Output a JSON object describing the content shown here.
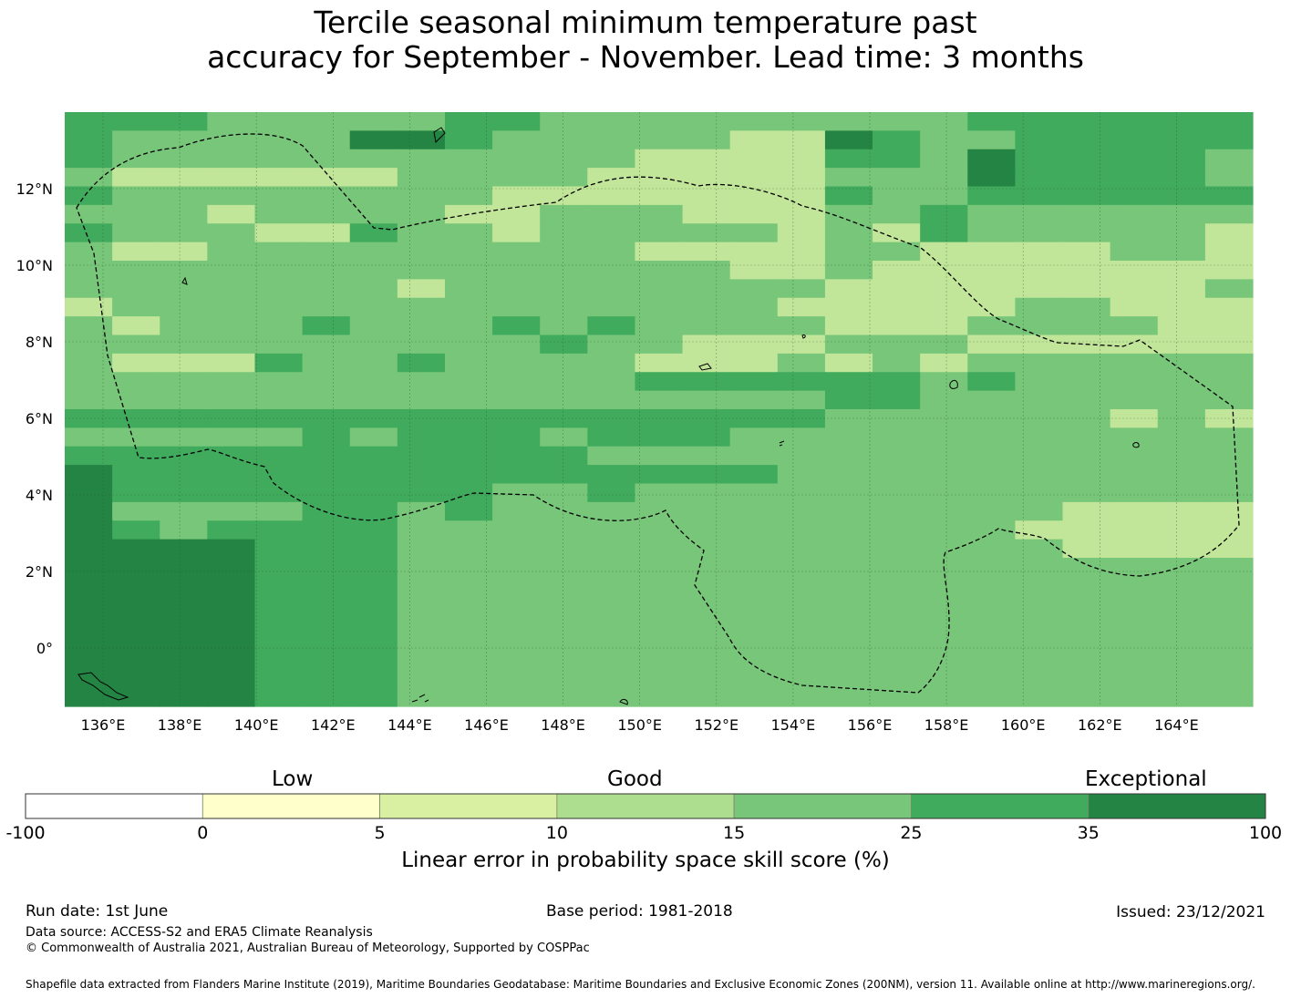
{
  "title_line1": "Tercile seasonal minimum temperature past",
  "title_line2": "accuracy for September - November. Lead time: 3 months",
  "map": {
    "lon_labels": [
      "136°E",
      "138°E",
      "140°E",
      "142°E",
      "144°E",
      "146°E",
      "148°E",
      "150°E",
      "152°E",
      "154°E",
      "156°E",
      "158°E",
      "160°E",
      "162°E",
      "164°E"
    ],
    "lat_labels": [
      "12°N",
      "10°N",
      "8°N",
      "6°N",
      "4°N",
      "2°N",
      "0°"
    ],
    "grid_rows": [
      "4443333344333333333444444",
      "4333335543333322543344444",
      "4333333333332222443544443",
      "3222222333322222333544443",
      "4333333332222222433444444",
      "3332333322333222334333333",
      "4333224332333332324333332",
      "3223333333332222332222332",
      "3333333333333322322222222",
      "3333333233333333222222223",
      "2333333333333332222233222",
      "3233343334343333222333322",
      "3333333333433222333222222",
      "3222433433332223232333333",
      "3333333333334444443433333",
      "3333333333333333443333333",
      "4444444444444444333333232",
      "3333343444344433333333333",
      "4444444444433333333333333",
      "5444444444444443333333333",
      "5444444443343333333333333",
      "5333344343333333333332222",
      "5434444333333333333322222",
      "5555444333333333333332222",
      "5555444333333333333333333",
      "5555444333333333333333333",
      "5555444333333333333333333",
      "5555444333333333333333333",
      "5555444333333333333333333",
      "5555444333333333333333333",
      "5555444333333333333333333",
      "5555444333333333333333333"
    ],
    "grid_note": "",
    "colors": {
      "1": "#ffffcc",
      "2": "#c2e699",
      "3": "#78c679",
      "4": "#41ab5d",
      "5": "#238443"
    }
  },
  "colorbar": {
    "categories": [
      "Low",
      "Good",
      "Exceptional"
    ],
    "bins": [
      {
        "from": "-100",
        "to": "0",
        "color": "#ffffff"
      },
      {
        "from": "0",
        "to": "5",
        "color": "#ffffcc"
      },
      {
        "from": "5",
        "to": "10",
        "color": "#d9f0a3"
      },
      {
        "from": "10",
        "to": "15",
        "color": "#addd8e"
      },
      {
        "from": "15",
        "to": "25",
        "color": "#78c679"
      },
      {
        "from": "25",
        "to": "35",
        "color": "#41ab5d"
      },
      {
        "from": "35",
        "to": "100",
        "color": "#238443"
      }
    ],
    "tick_labels": [
      "-100",
      "0",
      "5",
      "10",
      "15",
      "25",
      "35",
      "100"
    ],
    "title": "Linear error in probability space skill score (%)"
  },
  "footer": {
    "run_date": "Run date: 1st June",
    "base_period": "Base period: 1981-2018",
    "issued": "Issued: 23/12/2021",
    "data_source": "Data source: ACCESS-S2 and ERA5 Climate Reanalysis",
    "copyright": "© Commonwealth of Australia 2021, Australian Bureau of Meteorology, Supported by COSPPac",
    "shapefile": "Shapefile data extracted from Flanders Marine Institute (2019), Maritime Boundaries Geodatabase: Maritime Boundaries and Exclusive Economic Zones (200NM), version 11. Available online at http://www.marineregions.org/."
  }
}
